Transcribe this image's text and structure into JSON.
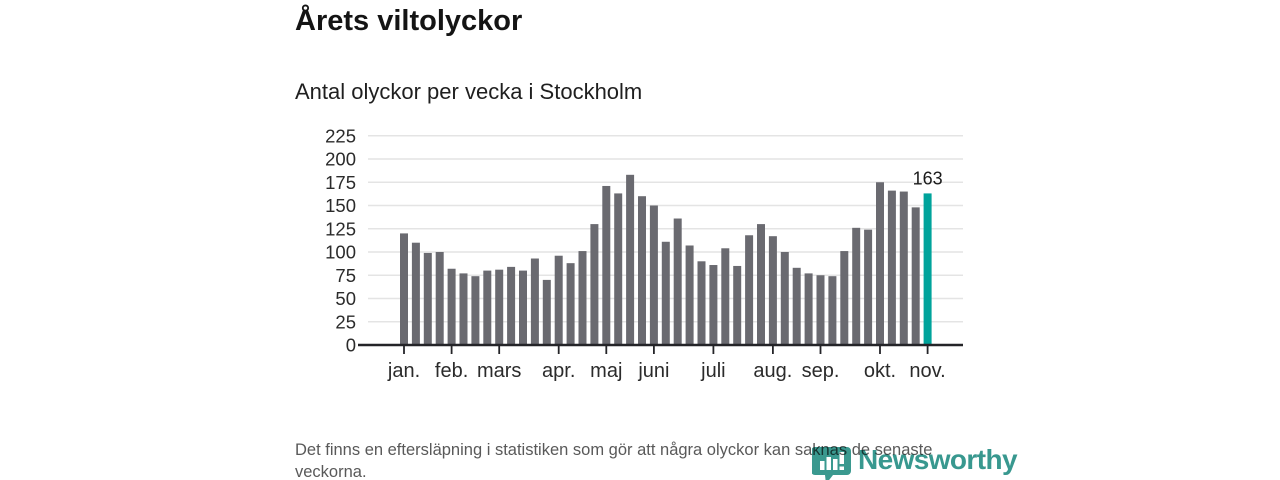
{
  "header": {
    "title": "Årets viltolyckor",
    "subtitle": "Antal olyckor per vecka i Stockholm"
  },
  "chart_data": {
    "type": "bar",
    "title": "Årets viltolyckor",
    "subtitle": "Antal olyckor per vecka i Stockholm",
    "unit": "olyckor per vecka",
    "values": [
      120,
      110,
      99,
      100,
      82,
      77,
      74,
      80,
      81,
      84,
      80,
      93,
      70,
      96,
      88,
      101,
      130,
      171,
      163,
      183,
      160,
      150,
      111,
      136,
      107,
      90,
      86,
      104,
      85,
      118,
      130,
      117,
      100,
      83,
      77,
      75,
      74,
      101,
      126,
      124,
      175,
      166,
      165,
      148,
      163
    ],
    "highlight": {
      "index": 44,
      "value": 163,
      "label": "163"
    },
    "x_tick_labels": [
      "jan.",
      "feb.",
      "mars",
      "apr.",
      "maj",
      "juni",
      "juli",
      "aug.",
      "sep.",
      "okt.",
      "nov."
    ],
    "x_tick_indices": [
      0,
      4,
      8,
      13,
      17,
      21,
      26,
      31,
      35,
      40,
      44
    ],
    "y_ticks": [
      0,
      25,
      50,
      75,
      100,
      125,
      150,
      175,
      200,
      225
    ],
    "ylim": [
      0,
      225
    ],
    "grid": true,
    "legend": "none",
    "bar_color": "#6a6a70",
    "highlight_color": "#00a39b",
    "grid_color": "#e4e4e4",
    "axis_color": "#242428",
    "label_color": "#2b2b2b"
  },
  "footer": {
    "note": "Det finns en eftersläpning i statistiken som gör att några olyckor kan saknas de senaste veckorna."
  },
  "logo": {
    "text": "Newsworthy",
    "color": "#38988f"
  }
}
